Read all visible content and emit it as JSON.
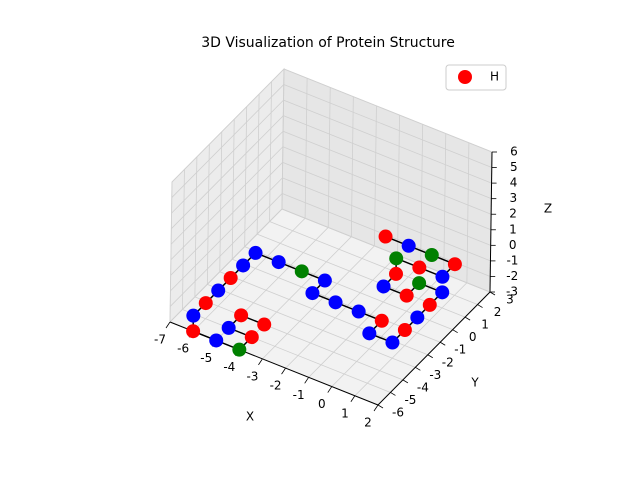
{
  "chart_data": {
    "type": "scatter3d",
    "title": "3D Visualization of Protein Structure",
    "xlabel": "X",
    "ylabel": "Y",
    "zlabel": "Z",
    "xlim": [
      -7,
      2
    ],
    "ylim": [
      -6,
      3
    ],
    "zlim": [
      -3,
      6
    ],
    "xticks": [
      -7,
      -6,
      -5,
      -4,
      -3,
      -2,
      -1,
      0,
      1,
      2
    ],
    "yticks": [
      -6,
      -5,
      -4,
      -3,
      -2,
      -1,
      0,
      1,
      2,
      3
    ],
    "zticks": [
      -3,
      -2,
      -1,
      0,
      1,
      2,
      3,
      4,
      5,
      6
    ],
    "x": [
      -4,
      -5,
      -5,
      -4,
      -4,
      -5,
      -6,
      -6,
      -6,
      -6,
      -6,
      -6,
      -6,
      -5,
      -4,
      -3,
      -3,
      -2,
      -1,
      0,
      0,
      1,
      1,
      1,
      1,
      1,
      0,
      0,
      -1,
      -1,
      -1,
      0,
      1,
      1,
      0,
      -1,
      -2
    ],
    "y": [
      -4,
      -4,
      -5,
      -5,
      -6,
      -6,
      -6,
      -6,
      -5,
      -4,
      -3,
      -2,
      -1,
      -1,
      -1,
      -1,
      -2,
      -2,
      -2,
      -2,
      -3,
      -3,
      -2,
      -1,
      0,
      1,
      1,
      0,
      0,
      1,
      1,
      1,
      1,
      2,
      2,
      2,
      2
    ],
    "z": [
      -3,
      -3,
      -3,
      -3,
      -3,
      -3,
      -3,
      -2,
      -2,
      -2,
      -2,
      -2,
      -2,
      -2,
      -2,
      -2,
      -2,
      -2,
      -2,
      -2,
      -2,
      -2,
      -2,
      -2,
      -2,
      -2,
      -2,
      -2,
      -2,
      -2,
      -1,
      -1,
      -1,
      -1,
      -1,
      -1,
      -1
    ],
    "point_colors": [
      "red",
      "red",
      "blue",
      "red",
      "green",
      "blue",
      "red",
      "blue",
      "red",
      "blue",
      "red",
      "blue",
      "blue",
      "blue",
      "green",
      "blue",
      "blue",
      "blue",
      "blue",
      "red",
      "blue",
      "blue",
      "red",
      "blue",
      "red",
      "blue",
      "green",
      "red",
      "blue",
      "red",
      "green",
      "red",
      "blue",
      "red",
      "green",
      "blue",
      "red"
    ],
    "line_color": "black",
    "legend": {
      "label": "H",
      "color": "red",
      "loc": "upper right"
    }
  }
}
